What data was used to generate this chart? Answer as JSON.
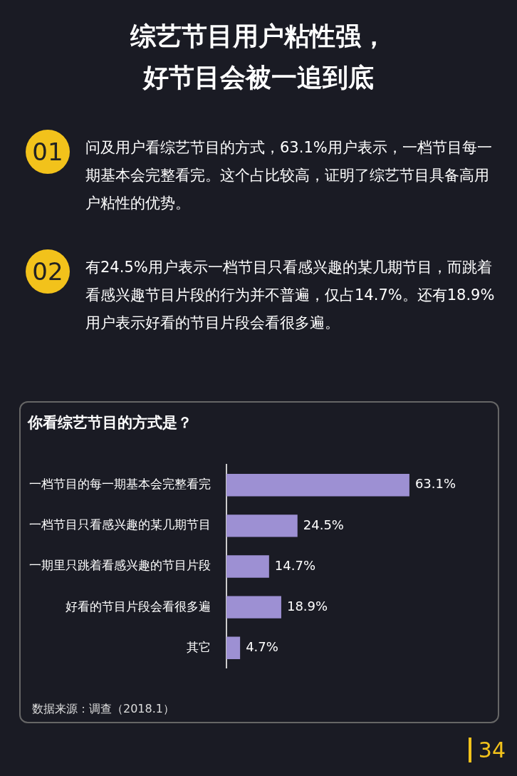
{
  "chart_data": {
    "type": "bar",
    "orientation": "horizontal",
    "title": "综艺节目用户粘性强，好节目会被一追到底",
    "subtitle": "你看综艺节目的方式是？",
    "categories": [
      "一档节目的每一期基本会完整看完",
      "一档节目只看感兴趣的某几期节目",
      "一期里只跳着看感兴趣的节目片段",
      "好看的节目片段会看很多遍",
      "其它"
    ],
    "values": [
      63.1,
      24.5,
      14.7,
      18.9,
      4.7
    ],
    "color": "#9d90d3",
    "value_labels": [
      "63.1%",
      "24.5%",
      "14.7%",
      "18.9%",
      "4.7%"
    ],
    "annotations": [
      "01",
      "问及用户看综艺节目的方式，63.1%用户表示，一档节目每一期基本会完整看完。这个占比较高，证明了综艺节目具备高用户粘性的优势。",
      "02",
      "有24.5%用户表示一档节目只看感兴趣的某几期节目，而跳着看感兴趣节目片段的行为并不普遍，仅占14.7%。还有18.9%用户表示好看的节目片段会看很多遍。",
      "数据来源：调查（2018.1）",
      "34"
    ],
    "legend": false
  }
}
